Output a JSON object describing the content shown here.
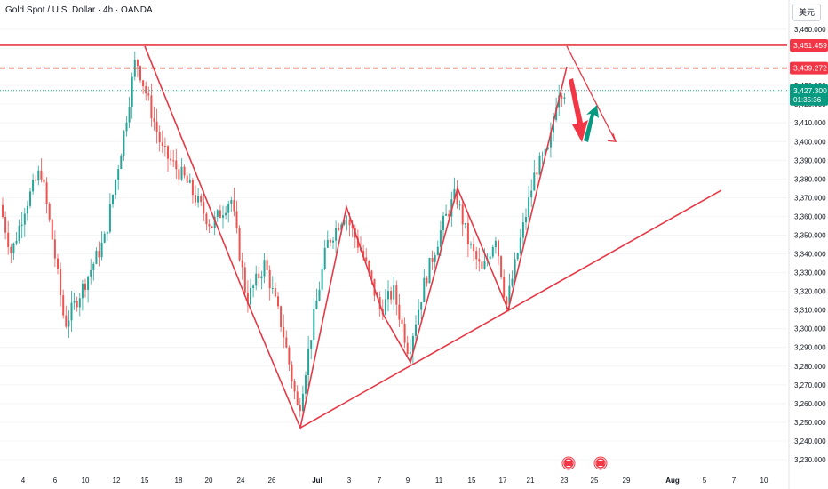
{
  "header": {
    "title": "Gold Spot / U.S. Dollar · 4h · OANDA",
    "currency_button": "美元"
  },
  "price_tags": {
    "resistance_top": "3,451.459",
    "resistance_dashed": "3,439.272",
    "current_price": "3,427.300",
    "countdown": "01:35:36"
  },
  "colors": {
    "bull_candle": "#26a69a",
    "bear_candle": "#ef5350",
    "trendline": "#e53946",
    "price_tag_red": "#f23645",
    "price_tag_green": "#089981"
  },
  "chart_data": {
    "type": "candlestick",
    "symbol": "Gold Spot / U.S. Dollar",
    "interval": "4h",
    "source": "OANDA",
    "ylim": [
      3225,
      3475
    ],
    "y_ticks": [
      3230,
      3240,
      3250,
      3260,
      3270,
      3280,
      3290,
      3300,
      3310,
      3320,
      3330,
      3340,
      3350,
      3360,
      3370,
      3380,
      3390,
      3400,
      3410,
      3420,
      3430,
      3440,
      3450,
      3460
    ],
    "x_ticks": [
      "4",
      "6",
      "10",
      "12",
      "15",
      "18",
      "20",
      "24",
      "26",
      "Jul",
      "3",
      "7",
      "9",
      "11",
      "15",
      "17",
      "21",
      "23",
      "25",
      "29",
      "Aug",
      "5",
      "7",
      "10"
    ],
    "price_path": [
      {
        "x": 0,
        "y": 3370
      },
      {
        "x": 15,
        "y": 3340
      },
      {
        "x": 30,
        "y": 3365
      },
      {
        "x": 48,
        "y": 3385
      },
      {
        "x": 62,
        "y": 3345
      },
      {
        "x": 75,
        "y": 3302
      },
      {
        "x": 95,
        "y": 3322
      },
      {
        "x": 120,
        "y": 3348
      },
      {
        "x": 140,
        "y": 3400
      },
      {
        "x": 155,
        "y": 3445
      },
      {
        "x": 170,
        "y": 3420
      },
      {
        "x": 185,
        "y": 3395
      },
      {
        "x": 210,
        "y": 3380
      },
      {
        "x": 240,
        "y": 3355
      },
      {
        "x": 262,
        "y": 3370
      },
      {
        "x": 280,
        "y": 3315
      },
      {
        "x": 300,
        "y": 3335
      },
      {
        "x": 320,
        "y": 3300
      },
      {
        "x": 338,
        "y": 3255
      },
      {
        "x": 355,
        "y": 3305
      },
      {
        "x": 370,
        "y": 3345
      },
      {
        "x": 390,
        "y": 3362
      },
      {
        "x": 410,
        "y": 3340
      },
      {
        "x": 430,
        "y": 3310
      },
      {
        "x": 445,
        "y": 3320
      },
      {
        "x": 462,
        "y": 3288
      },
      {
        "x": 480,
        "y": 3325
      },
      {
        "x": 500,
        "y": 3355
      },
      {
        "x": 515,
        "y": 3372
      },
      {
        "x": 530,
        "y": 3345
      },
      {
        "x": 545,
        "y": 3330
      },
      {
        "x": 560,
        "y": 3350
      },
      {
        "x": 572,
        "y": 3312
      },
      {
        "x": 590,
        "y": 3352
      },
      {
        "x": 605,
        "y": 3385
      },
      {
        "x": 620,
        "y": 3395
      },
      {
        "x": 630,
        "y": 3428
      },
      {
        "x": 638,
        "y": 3427
      }
    ],
    "annotations": {
      "horizontal_lines": [
        3451.459,
        3439.272
      ],
      "zigzag_pattern": [
        {
          "x": 163,
          "y": 3451
        },
        {
          "x": 278,
          "y": 3315
        },
        {
          "x": 338,
          "y": 3247
        },
        {
          "x": 390,
          "y": 3365
        },
        {
          "x": 432,
          "y": 3307
        },
        {
          "x": 462,
          "y": 3282
        },
        {
          "x": 515,
          "y": 3375
        },
        {
          "x": 572,
          "y": 3310
        },
        {
          "x": 638,
          "y": 3440
        }
      ],
      "support_trendline": [
        {
          "x": 338,
          "y": 3247
        },
        {
          "x": 812,
          "y": 3374
        }
      ],
      "projection": [
        {
          "x": 638,
          "y": 3451
        },
        {
          "x": 693,
          "y": 3400
        }
      ],
      "arrows": [
        "red-down",
        "green-up"
      ]
    }
  }
}
